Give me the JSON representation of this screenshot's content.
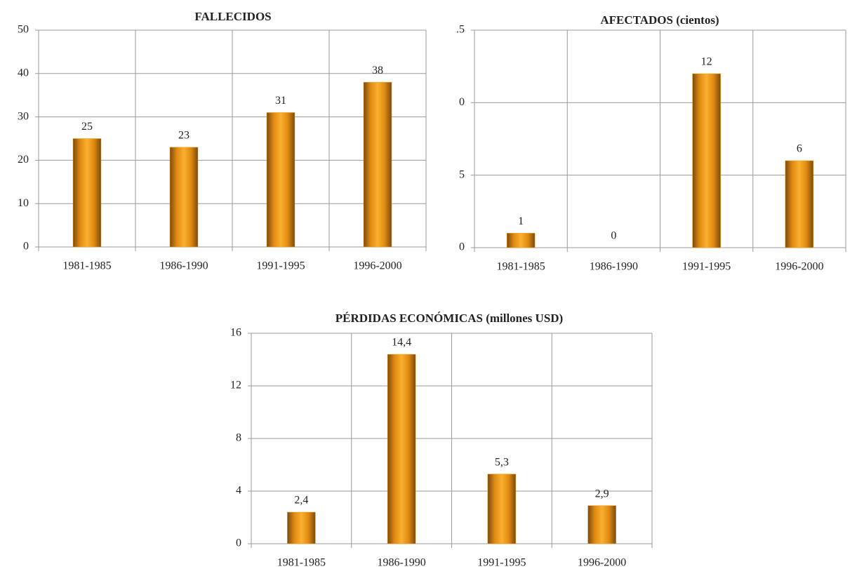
{
  "chart_data": [
    {
      "type": "bar",
      "title": "FALLECIDOS",
      "categories": [
        "1981-1985",
        "1986-1990",
        "1991-1995",
        "1996-2000"
      ],
      "values": [
        25,
        23,
        31,
        38
      ],
      "color": "#f5a01e",
      "ylim": [
        0,
        50
      ],
      "yticks": [
        0,
        10,
        20,
        30,
        40,
        50
      ],
      "grid": true
    },
    {
      "type": "bar",
      "title": "AFECTADOS  (cientos)",
      "categories": [
        "1981-1985",
        "1986-1990",
        "1991-1995",
        "1996-2000"
      ],
      "values": [
        1,
        0,
        12,
        6
      ],
      "color": "#f5a01e",
      "ylim": [
        0,
        15
      ],
      "yticks": [
        0,
        5,
        {
          "value": 10,
          "label": "0"
        },
        {
          "value": 15,
          "label": ".5"
        }
      ],
      "grid": true
    },
    {
      "type": "bar",
      "title": "PÉRDIDAS  ECONÓMICAS  (millones USD)",
      "categories": [
        "1981-1985",
        "1986-1990",
        "1991-1995",
        "1996-2000"
      ],
      "values": [
        2.4,
        14.4,
        5.3,
        2.9
      ],
      "value_labels": [
        "2,4",
        "14,4",
        "5,3",
        "2,9"
      ],
      "color": "#f5a01e",
      "ylim": [
        0,
        16
      ],
      "yticks": [
        0,
        4,
        8,
        12,
        16
      ],
      "grid": true
    }
  ]
}
